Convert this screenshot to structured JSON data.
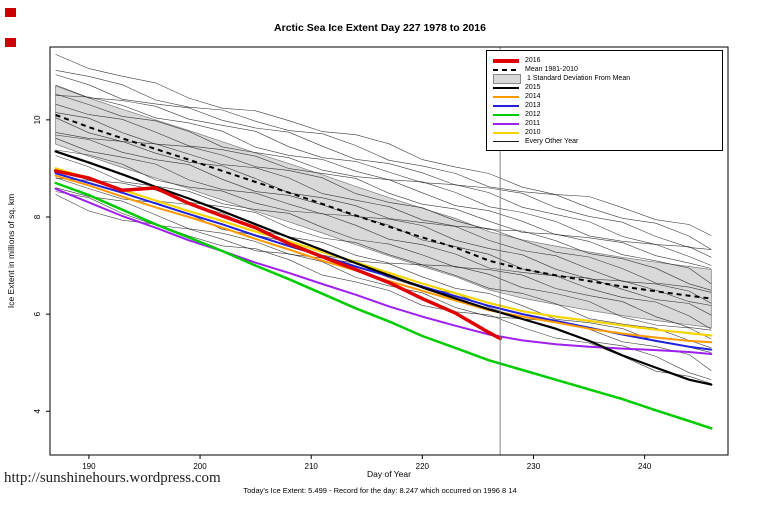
{
  "page": {
    "url_watermark": "http://sunshinehours.wordpress.com",
    "footer_caption": "Today's Ice Extent: 5.499  -  Record for the day: 8.247 which occurred on 1996 8 14"
  },
  "chart_data": {
    "type": "line",
    "title": "Arctic Sea Ice Extent Day 227 1978 to 2016",
    "xlabel": "Day of Year",
    "ylabel": "Ice Extent in millions of sq. km",
    "xlim": [
      186.5,
      247.5
    ],
    "ylim": [
      3.1,
      11.5
    ],
    "x_ticks": [
      190,
      200,
      210,
      220,
      230,
      240
    ],
    "y_ticks": [
      4,
      6,
      8,
      10
    ],
    "grid": false,
    "legend_position": "top-right",
    "marker_day": 227,
    "marker_color": "#777777",
    "today_value": 5.499,
    "record_value": 8.247,
    "record_date": "1996 8 14",
    "x": [
      187,
      190,
      193,
      196,
      199,
      202,
      205,
      208,
      211,
      214,
      217,
      220,
      223,
      226,
      229,
      232,
      235,
      238,
      241,
      244,
      246
    ],
    "mean": {
      "label": "Mean 1981-2010",
      "color": "#000000",
      "width": 2,
      "dash": "5,4",
      "values": [
        10.1,
        9.85,
        9.62,
        9.4,
        9.18,
        8.95,
        8.72,
        8.5,
        8.27,
        8.03,
        7.8,
        7.58,
        7.37,
        7.1,
        6.93,
        6.8,
        6.68,
        6.57,
        6.47,
        6.38,
        6.32
      ]
    },
    "band": {
      "label": "1 Standard Deviation From Mean",
      "halfwidth": 0.6,
      "fill": "#d9d9d9",
      "border": "#7a7a7a"
    },
    "series": [
      {
        "name": "2016",
        "color": "#e00000",
        "width": 3.5,
        "x": [
          187,
          190,
          193,
          196,
          199,
          202,
          205,
          208,
          211,
          214,
          217,
          220,
          223,
          226,
          227
        ],
        "values": [
          8.95,
          8.8,
          8.55,
          8.6,
          8.28,
          8.02,
          7.78,
          7.45,
          7.18,
          6.92,
          6.65,
          6.32,
          6.02,
          5.62,
          5.499
        ]
      },
      {
        "name": "2015",
        "color": "#000000",
        "width": 2.2,
        "values": [
          9.35,
          9.12,
          8.88,
          8.62,
          8.38,
          8.12,
          7.85,
          7.58,
          7.32,
          7.05,
          6.8,
          6.55,
          6.32,
          6.1,
          5.9,
          5.7,
          5.45,
          5.15,
          4.9,
          4.65,
          4.55
        ]
      },
      {
        "name": "2014",
        "color": "#ff9900",
        "width": 2,
        "values": [
          8.85,
          8.65,
          8.42,
          8.2,
          8.0,
          7.78,
          7.55,
          7.33,
          7.1,
          6.9,
          6.68,
          6.48,
          6.28,
          6.08,
          5.95,
          5.83,
          5.7,
          5.6,
          5.52,
          5.45,
          5.42
        ]
      },
      {
        "name": "2013",
        "color": "#2222dd",
        "width": 2,
        "values": [
          8.9,
          8.7,
          8.5,
          8.28,
          8.06,
          7.85,
          7.62,
          7.4,
          7.2,
          6.98,
          6.78,
          6.57,
          6.37,
          6.17,
          6.0,
          5.86,
          5.72,
          5.58,
          5.45,
          5.33,
          5.27
        ]
      },
      {
        "name": "2012",
        "color": "#00cc00",
        "width": 2.5,
        "values": [
          8.7,
          8.45,
          8.15,
          7.85,
          7.58,
          7.3,
          7.0,
          6.72,
          6.42,
          6.12,
          5.85,
          5.55,
          5.3,
          5.05,
          4.85,
          4.65,
          4.45,
          4.25,
          4.02,
          3.8,
          3.65
        ]
      },
      {
        "name": "2011",
        "color": "#a020f0",
        "width": 2,
        "values": [
          8.58,
          8.3,
          8.02,
          7.78,
          7.52,
          7.3,
          7.06,
          6.85,
          6.62,
          6.4,
          6.16,
          5.95,
          5.76,
          5.58,
          5.46,
          5.38,
          5.33,
          5.29,
          5.26,
          5.22,
          5.18
        ]
      },
      {
        "name": "2010",
        "color": "#f5d400",
        "width": 2.2,
        "values": [
          9.0,
          8.8,
          8.56,
          8.34,
          8.12,
          7.92,
          7.7,
          7.5,
          7.28,
          7.07,
          6.85,
          6.63,
          6.43,
          6.23,
          6.06,
          5.95,
          5.86,
          5.77,
          5.68,
          5.61,
          5.56
        ]
      }
    ],
    "background": {
      "label": "Every Other Year",
      "color": "#1a1a1a",
      "width": 0.6,
      "lines": [
        {
          "start": 11.25,
          "end": 7.6,
          "seed": 1
        },
        {
          "start": 11.05,
          "end": 7.45,
          "seed": 2
        },
        {
          "start": 10.9,
          "end": 7.3,
          "seed": 3
        },
        {
          "start": 10.75,
          "end": 7.15,
          "seed": 4
        },
        {
          "start": 10.6,
          "end": 7.0,
          "seed": 5
        },
        {
          "start": 10.45,
          "end": 6.85,
          "seed": 6
        },
        {
          "start": 10.3,
          "end": 6.7,
          "seed": 7
        },
        {
          "start": 10.15,
          "end": 6.55,
          "seed": 8
        },
        {
          "start": 10.0,
          "end": 6.4,
          "seed": 9
        },
        {
          "start": 9.85,
          "end": 6.25,
          "seed": 10
        },
        {
          "start": 9.7,
          "end": 6.1,
          "seed": 11
        },
        {
          "start": 9.55,
          "end": 5.95,
          "seed": 12
        },
        {
          "start": 9.4,
          "end": 5.8,
          "seed": 13
        },
        {
          "start": 9.2,
          "end": 5.65,
          "seed": 14
        },
        {
          "start": 9.05,
          "end": 5.5,
          "seed": 15
        },
        {
          "start": 8.9,
          "end": 5.3,
          "seed": 16
        },
        {
          "start": 8.75,
          "end": 5.1,
          "seed": 17
        },
        {
          "start": 8.6,
          "end": 4.9,
          "seed": 18
        },
        {
          "start": 8.5,
          "end": 4.7,
          "seed": 19
        },
        {
          "start": 8.4,
          "end": 4.55,
          "seed": 20
        }
      ]
    },
    "legend": [
      {
        "label": "2016",
        "swatch": "line",
        "color": "#e00000",
        "width": 4
      },
      {
        "label": "Mean 1981-2010",
        "swatch": "dash",
        "color": "#000000",
        "width": 2
      },
      {
        "label": "1 Standard Deviation From Mean",
        "swatch": "box",
        "color": "#d9d9d9"
      },
      {
        "label": "2015",
        "swatch": "line",
        "color": "#000000",
        "width": 2
      },
      {
        "label": "2014",
        "swatch": "line",
        "color": "#ff9900",
        "width": 2
      },
      {
        "label": "2013",
        "swatch": "line",
        "color": "#2222dd",
        "width": 2
      },
      {
        "label": "2012",
        "swatch": "line",
        "color": "#00cc00",
        "width": 2
      },
      {
        "label": "2011",
        "swatch": "line",
        "color": "#a020f0",
        "width": 2
      },
      {
        "label": "2010",
        "swatch": "line",
        "color": "#f5d400",
        "width": 2
      },
      {
        "label": "Every Other Year",
        "swatch": "line",
        "color": "#1a1a1a",
        "width": 1
      }
    ]
  }
}
